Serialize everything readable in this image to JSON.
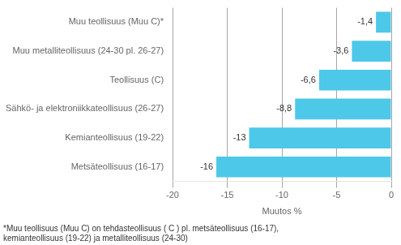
{
  "chart_data": {
    "type": "bar",
    "orientation": "horizontal",
    "categories": [
      "Metsäteollisuus (16-17)",
      "Kemianteollisuus (19-22)",
      "Sähkö- ja elektroniikkateollisuus (26-27)",
      "Teollisuus (C)",
      "Muu metalliteollisuus (24-30 pl. 26-27)",
      "Muu teollisuus (Muu C)*"
    ],
    "values": [
      -16.0,
      -13.0,
      -8.8,
      -6.6,
      -3.6,
      -1.4
    ],
    "value_labels": [
      "-16",
      "-13",
      "-8,8",
      "-6,6",
      "-3,6",
      "-1,4"
    ],
    "data_labels": true,
    "color": "#4DC8E8",
    "xlabel": "Muutos %",
    "xlim": [
      -20,
      0
    ],
    "xticks": [
      -20,
      -15,
      -10,
      -5,
      0
    ],
    "grid": true,
    "annotations": [
      "*Muu teollisuus (Muu C) on tehdasteollisuus ( C ) pl. metsäteollisuus (16-17),\nkemianteollisuus (19-22) ja metalliteollisuus (24-30)"
    ]
  }
}
